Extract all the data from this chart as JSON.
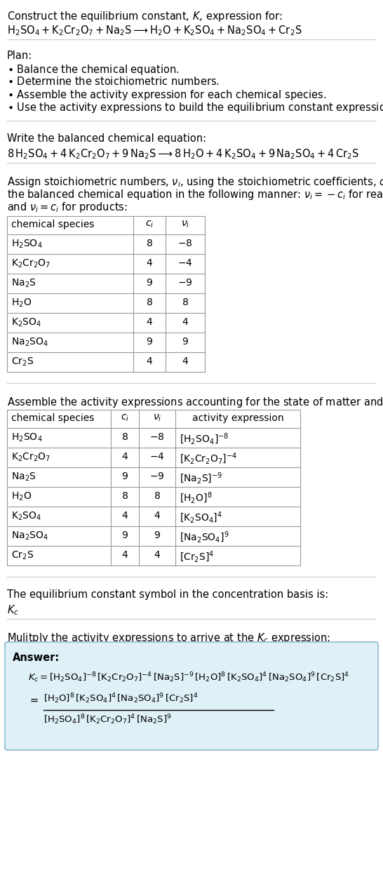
{
  "bg_color": "#ffffff",
  "text_color": "#000000",
  "separator_color": "#cccccc",
  "table_border_color": "#999999",
  "answer_box_color": "#dff0f7",
  "answer_box_border": "#8bbdd4",
  "font_size_title": 10.5,
  "font_size_body": 10.5,
  "font_size_table": 10.0,
  "font_size_answer": 9.5,
  "table1_data": [
    [
      "$\\mathrm{H_2SO_4}$",
      "8",
      "$-8$"
    ],
    [
      "$\\mathrm{K_2Cr_2O_7}$",
      "4",
      "$-4$"
    ],
    [
      "$\\mathrm{Na_2S}$",
      "9",
      "$-9$"
    ],
    [
      "$\\mathrm{H_2O}$",
      "8",
      "8"
    ],
    [
      "$\\mathrm{K_2SO_4}$",
      "4",
      "4"
    ],
    [
      "$\\mathrm{Na_2SO_4}$",
      "9",
      "9"
    ],
    [
      "$\\mathrm{Cr_2S}$",
      "4",
      "4"
    ]
  ],
  "table2_data": [
    [
      "$\\mathrm{H_2SO_4}$",
      "8",
      "$-8$",
      "$[\\mathrm{H_2SO_4}]^{-8}$"
    ],
    [
      "$\\mathrm{K_2Cr_2O_7}$",
      "4",
      "$-4$",
      "$[\\mathrm{K_2Cr_2O_7}]^{-4}$"
    ],
    [
      "$\\mathrm{Na_2S}$",
      "9",
      "$-9$",
      "$[\\mathrm{Na_2S}]^{-9}$"
    ],
    [
      "$\\mathrm{H_2O}$",
      "8",
      "8",
      "$[\\mathrm{H_2O}]^{8}$"
    ],
    [
      "$\\mathrm{K_2SO_4}$",
      "4",
      "4",
      "$[\\mathrm{K_2SO_4}]^{4}$"
    ],
    [
      "$\\mathrm{Na_2SO_4}$",
      "9",
      "9",
      "$[\\mathrm{Na_2SO_4}]^{9}$"
    ],
    [
      "$\\mathrm{Cr_2S}$",
      "4",
      "4",
      "$[\\mathrm{Cr_2S}]^{4}$"
    ]
  ]
}
